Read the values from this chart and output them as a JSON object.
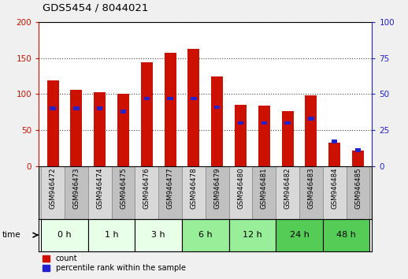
{
  "title": "GDS5454 / 8044021",
  "samples": [
    "GSM946472",
    "GSM946473",
    "GSM946474",
    "GSM946475",
    "GSM946476",
    "GSM946477",
    "GSM946478",
    "GSM946479",
    "GSM946480",
    "GSM946481",
    "GSM946482",
    "GSM946483",
    "GSM946484",
    "GSM946485"
  ],
  "counts": [
    119,
    106,
    103,
    100,
    144,
    158,
    163,
    125,
    85,
    84,
    76,
    98,
    33,
    22
  ],
  "percentile_ranks": [
    40,
    40,
    40,
    38,
    47,
    47,
    47,
    41,
    30,
    30,
    30,
    33,
    17,
    11
  ],
  "time_groups": [
    {
      "label": "0 h",
      "start": 0,
      "end": 2,
      "color": "#e8ffe8"
    },
    {
      "label": "1 h",
      "start": 2,
      "end": 4,
      "color": "#e8ffe8"
    },
    {
      "label": "3 h",
      "start": 4,
      "end": 6,
      "color": "#e8ffe8"
    },
    {
      "label": "6 h",
      "start": 6,
      "end": 8,
      "color": "#99ee99"
    },
    {
      "label": "12 h",
      "start": 8,
      "end": 10,
      "color": "#99ee99"
    },
    {
      "label": "24 h",
      "start": 10,
      "end": 12,
      "color": "#55cc55"
    },
    {
      "label": "48 h",
      "start": 12,
      "end": 14,
      "color": "#55cc55"
    }
  ],
  "bar_color": "#cc1100",
  "blue_color": "#2222cc",
  "count_ylim": [
    0,
    200
  ],
  "pct_ylim": [
    0,
    100
  ],
  "count_yticks": [
    0,
    50,
    100,
    150,
    200
  ],
  "pct_yticks": [
    0,
    25,
    50,
    75,
    100
  ],
  "bar_width": 0.5,
  "left_axis_color": "#cc1100",
  "right_axis_color": "#2222cc",
  "plot_bg": "#ffffff",
  "fig_bg": "#f0f0f0"
}
